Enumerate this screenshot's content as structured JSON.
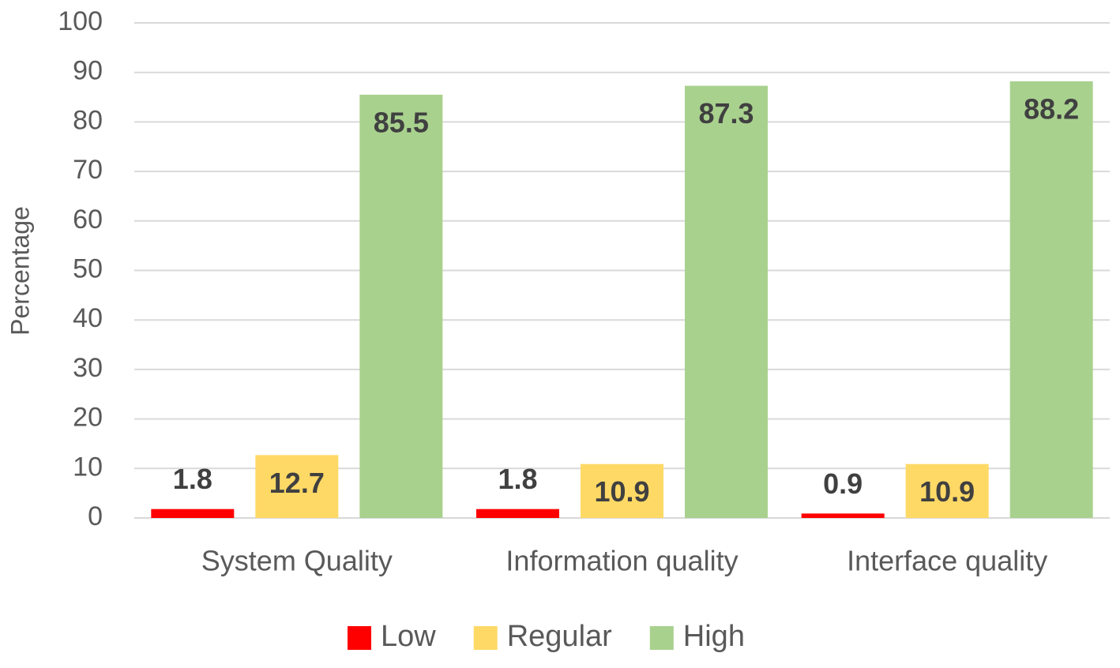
{
  "chart_data": {
    "type": "bar",
    "y_label": "Percentage",
    "categories": [
      "System Quality",
      "Information quality",
      "Interface quality"
    ],
    "series": [
      {
        "name": "Low",
        "color": "#ff0000",
        "values": [
          1.8,
          1.8,
          0.9
        ]
      },
      {
        "name": "Regular",
        "color": "#ffd966",
        "values": [
          12.7,
          10.9,
          10.9
        ]
      },
      {
        "name": "High",
        "color": "#a9d18e",
        "values": [
          85.5,
          87.3,
          88.2
        ]
      }
    ],
    "ylim": [
      0,
      100
    ],
    "yticks": [
      0,
      10,
      20,
      30,
      40,
      50,
      60,
      70,
      80,
      90,
      100
    ],
    "grid": true,
    "legend": "bottom"
  }
}
